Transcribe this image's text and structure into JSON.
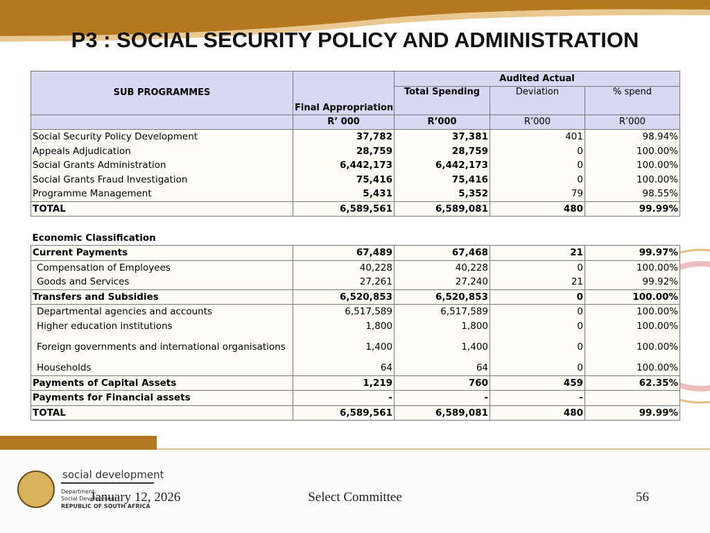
{
  "title": "P3 : SOCIAL SECURITY POLICY AND ADMINISTRATION",
  "table": {
    "header": {
      "sub_programmes": "SUB PROGRAMMES",
      "final_appropriation": "Final Appropriation",
      "audited_actual": "Audited Actual",
      "total_spending": "Total Spending",
      "deviation": "Deviation",
      "percent_spend": "% spend",
      "units": [
        "R’ 000",
        "R’000",
        "R’000",
        "R’000"
      ]
    },
    "programme_rows": [
      [
        "Social Security Policy Development",
        "37,782",
        "37,381",
        "401",
        "98.94%"
      ],
      [
        "Appeals  Adjudication",
        "28,759",
        "28,759",
        "0",
        "100.00%"
      ],
      [
        "Social Grants Administration",
        "6,442,173",
        "6,442,173",
        "0",
        "100.00%"
      ],
      [
        "Social Grants Fraud Investigation",
        "75,416",
        "75,416",
        "0",
        "100.00%"
      ],
      [
        "Programme Management",
        "5,431",
        "5,352",
        "79",
        "98.55%"
      ],
      [
        "TOTAL",
        "6,589,561",
        "6,589,081",
        "480",
        "99.99%"
      ]
    ],
    "economic_heading": "Economic Classification",
    "economic_rows": [
      [
        "Current Payments",
        "67,489",
        "67,468",
        "21",
        "99.97%"
      ],
      [
        "Compensation of Employees",
        "40,228",
        "40,228",
        "0",
        "100.00%"
      ],
      [
        "Goods and Services",
        "27,261",
        "27,240",
        "21",
        "99.92%"
      ],
      [
        "Transfers and Subsidies",
        "6,520,853",
        "6,520,853",
        "0",
        "100.00%"
      ],
      [
        "Departmental agencies and accounts",
        "6,517,589",
        "6,517,589",
        "0",
        "100.00%"
      ],
      [
        "Higher education institutions",
        "1,800",
        "1,800",
        "0",
        "100.00%"
      ],
      [
        "Foreign governments and international organisations",
        "1,400",
        "1,400",
        "0",
        "100.00%"
      ],
      [
        "Households",
        "64",
        "64",
        "0",
        "100.00%"
      ],
      [
        "Payments of Capital Assets",
        "1,219",
        "760",
        "459",
        "62.35%"
      ],
      [
        "Payments for Financial assets",
        "-",
        "-",
        "-"
      ],
      [
        "TOTAL",
        "6,589,561",
        "6,589,081",
        "480",
        "99.99%"
      ]
    ]
  },
  "logo": {
    "name": "social development",
    "line1": "Department:",
    "line2": "Social Development",
    "line3": "REPUBLIC OF SOUTH AFRICA"
  },
  "footer": {
    "date": "January 12, 2026",
    "center": "Select Committee",
    "page": "56"
  }
}
